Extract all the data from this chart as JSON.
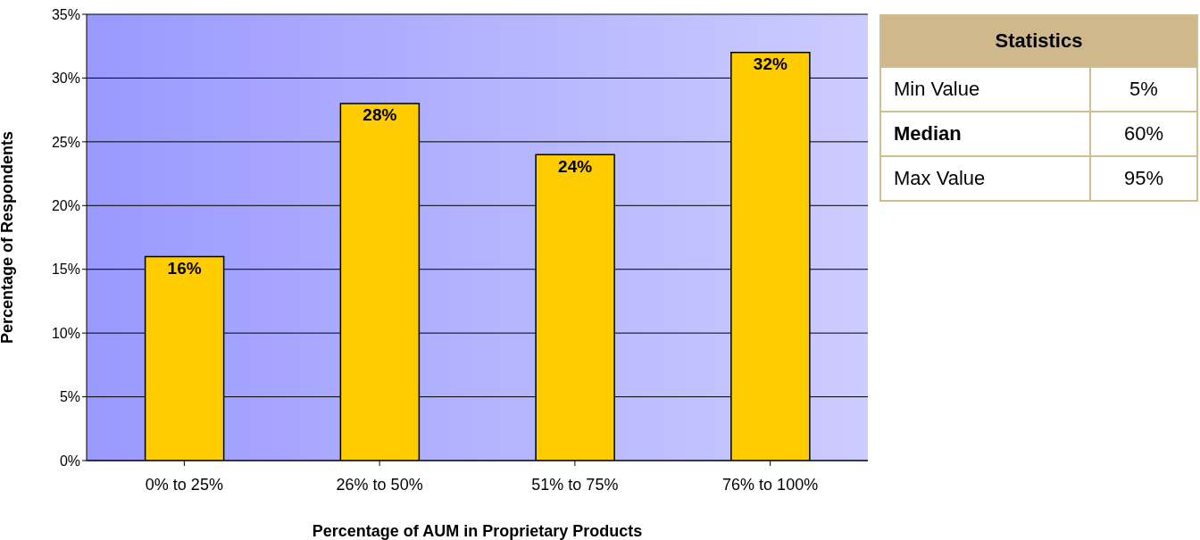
{
  "chart_data": [
    {
      "type": "bar",
      "xlabel": "Percentage of AUM in Proprietary Products",
      "ylabel": "Percentage of Respondents",
      "categories": [
        "0% to 25%",
        "26% to 50%",
        "51% to 75%",
        "76% to 100%"
      ],
      "values": [
        16,
        28,
        24,
        32
      ],
      "value_labels": [
        "16%",
        "28%",
        "24%",
        "32%"
      ],
      "color": "#ffcc00",
      "ylim": [
        0,
        35
      ],
      "yticks": [
        {
          "value": 0,
          "label": "0%"
        },
        {
          "value": 5,
          "label": "5%"
        },
        {
          "value": 10,
          "label": "10%"
        },
        {
          "value": 15,
          "label": "15%"
        },
        {
          "value": 20,
          "label": "20%"
        },
        {
          "value": 25,
          "label": "25%"
        },
        {
          "value": 30,
          "label": "30%"
        },
        {
          "value": 35,
          "label": "35%"
        }
      ],
      "grid": "y",
      "legend": false
    },
    {
      "type": "other",
      "title": "Statistics",
      "categories": [
        "Min Value",
        "Median",
        "Max Value"
      ],
      "value_labels": [
        "5%",
        "60%",
        "95%"
      ]
    }
  ]
}
